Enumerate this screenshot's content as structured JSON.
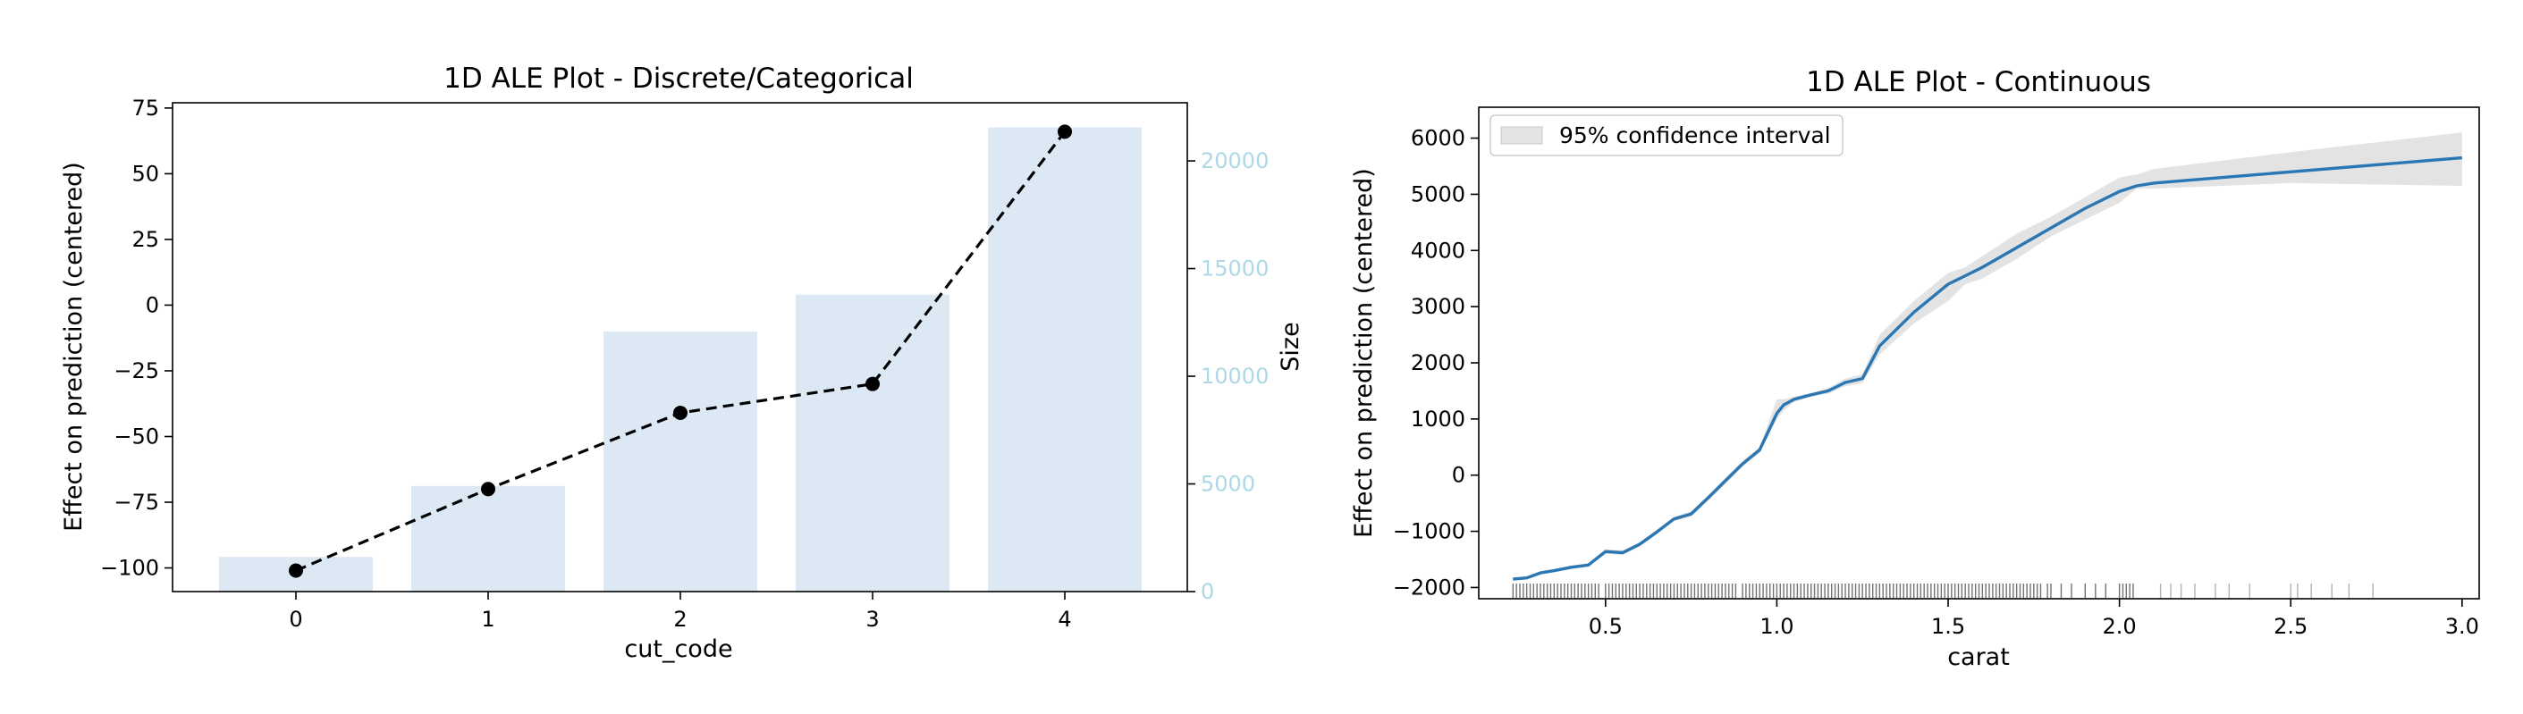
{
  "chart_data": [
    {
      "type": "bar",
      "title": "1D ALE Plot - Discrete/Categorical",
      "xlabel": "cut_code",
      "ylabel": "Effect on prediction (centered)",
      "y2label": "Size",
      "categories": [
        "0",
        "1",
        "2",
        "3",
        "4"
      ],
      "y_ticks": [
        75,
        50,
        25,
        0,
        -25,
        -50,
        -75,
        -100
      ],
      "y_tick_labels": [
        "75",
        "50",
        "25",
        "0",
        "−25",
        "−50",
        "−75",
        "−100"
      ],
      "y2_ticks": [
        0,
        5000,
        10000,
        15000,
        20000
      ],
      "y2_tick_labels": [
        "0",
        "5000",
        "10000",
        "15000",
        "20000"
      ],
      "ylim": [
        -109,
        77
      ],
      "y2lim": [
        0,
        22700
      ],
      "series": [
        {
          "kind": "bar",
          "axis": "right",
          "values": [
            1610,
            4906,
            12082,
            13791,
            21551
          ]
        },
        {
          "kind": "line",
          "axis": "left",
          "style": "dashed",
          "values": [
            -101,
            -70,
            -41,
            -30,
            66
          ]
        }
      ],
      "colors": {
        "bars": "#dce8f4",
        "line": "#000000",
        "right_axis": "#add8e6"
      },
      "grid": false
    },
    {
      "type": "line",
      "title": "1D ALE Plot - Continuous",
      "xlabel": "carat",
      "ylabel": "Effect on prediction (centered)",
      "xlim": [
        0.13,
        3.05
      ],
      "ylim": [
        -2200,
        6550
      ],
      "x_ticks": [
        0.5,
        1.0,
        1.5,
        2.0,
        2.5,
        3.0
      ],
      "x_tick_labels": [
        "0.5",
        "1.0",
        "1.5",
        "2.0",
        "2.5",
        "3.0"
      ],
      "y_ticks": [
        6000,
        5000,
        4000,
        3000,
        2000,
        1000,
        0,
        -1000,
        -2000
      ],
      "y_tick_labels": [
        "6000",
        "5000",
        "4000",
        "3000",
        "2000",
        "1000",
        "0",
        "−1000",
        "−2000"
      ],
      "legend": {
        "label": "95% confidence interval",
        "position": "top-left"
      },
      "series": [
        {
          "name": "",
          "x": [
            0.23,
            0.27,
            0.31,
            0.35,
            0.4,
            0.45,
            0.5,
            0.55,
            0.6,
            0.65,
            0.7,
            0.75,
            0.8,
            0.85,
            0.9,
            0.95,
            1.0,
            1.02,
            1.05,
            1.1,
            1.15,
            1.2,
            1.25,
            1.3,
            1.4,
            1.5,
            1.55,
            1.6,
            1.7,
            1.8,
            1.9,
            2.0,
            2.05,
            2.1,
            2.5,
            3.0
          ],
          "y": [
            -1850,
            -1830,
            -1740,
            -1700,
            -1640,
            -1600,
            -1360,
            -1380,
            -1230,
            -1010,
            -780,
            -690,
            -400,
            -100,
            200,
            450,
            1100,
            1250,
            1350,
            1430,
            1500,
            1650,
            1720,
            2300,
            2900,
            3400,
            3550,
            3700,
            4050,
            4400,
            4750,
            5050,
            5150,
            5200,
            5400,
            5650
          ]
        }
      ],
      "ci_band": {
        "lower": [
          -1870,
          -1850,
          -1770,
          -1730,
          -1670,
          -1630,
          -1400,
          -1420,
          -1270,
          -1050,
          -820,
          -740,
          -450,
          -150,
          150,
          400,
          1000,
          1150,
          1300,
          1400,
          1450,
          1580,
          1640,
          2150,
          2700,
          3100,
          3400,
          3500,
          3850,
          4250,
          4550,
          4850,
          5100,
          5100,
          5200,
          5150
        ],
        "upper": [
          -1830,
          -1810,
          -1710,
          -1670,
          -1610,
          -1570,
          -1320,
          -1340,
          -1190,
          -970,
          -740,
          -640,
          -350,
          -50,
          250,
          500,
          1350,
          1350,
          1400,
          1460,
          1550,
          1720,
          1800,
          2500,
          3100,
          3600,
          3700,
          3900,
          4300,
          4600,
          4950,
          5300,
          5350,
          5450,
          5750,
          6100
        ]
      },
      "rug_x": [
        0.23,
        0.24,
        0.25,
        0.26,
        0.27,
        0.28,
        0.29,
        0.3,
        0.31,
        0.32,
        0.33,
        0.34,
        0.35,
        0.36,
        0.37,
        0.38,
        0.39,
        0.4,
        0.41,
        0.42,
        0.43,
        0.44,
        0.45,
        0.46,
        0.47,
        0.48,
        0.5,
        0.51,
        0.52,
        0.53,
        0.54,
        0.55,
        0.56,
        0.57,
        0.58,
        0.59,
        0.6,
        0.61,
        0.62,
        0.63,
        0.64,
        0.65,
        0.66,
        0.67,
        0.68,
        0.69,
        0.7,
        0.71,
        0.72,
        0.73,
        0.74,
        0.75,
        0.76,
        0.77,
        0.78,
        0.79,
        0.8,
        0.81,
        0.82,
        0.83,
        0.84,
        0.85,
        0.86,
        0.87,
        0.88,
        0.9,
        0.91,
        0.92,
        0.93,
        0.94,
        0.95,
        0.96,
        0.97,
        0.98,
        0.99,
        1.0,
        1.01,
        1.02,
        1.03,
        1.04,
        1.05,
        1.06,
        1.07,
        1.08,
        1.09,
        1.1,
        1.11,
        1.12,
        1.13,
        1.14,
        1.15,
        1.16,
        1.17,
        1.18,
        1.19,
        1.2,
        1.21,
        1.22,
        1.23,
        1.24,
        1.25,
        1.26,
        1.27,
        1.28,
        1.29,
        1.3,
        1.31,
        1.32,
        1.33,
        1.34,
        1.35,
        1.36,
        1.37,
        1.38,
        1.39,
        1.4,
        1.41,
        1.42,
        1.43,
        1.44,
        1.45,
        1.46,
        1.47,
        1.48,
        1.49,
        1.5,
        1.51,
        1.52,
        1.53,
        1.54,
        1.55,
        1.56,
        1.57,
        1.58,
        1.59,
        1.6,
        1.61,
        1.62,
        1.63,
        1.64,
        1.65,
        1.66,
        1.67,
        1.68,
        1.69,
        1.7,
        1.71,
        1.72,
        1.73,
        1.74,
        1.75,
        1.76,
        1.77,
        1.79,
        1.8,
        1.83,
        1.86,
        1.9,
        1.93,
        1.96,
        2.0,
        2.01,
        2.02,
        2.03,
        2.04,
        2.12,
        2.15,
        2.18,
        2.22,
        2.28,
        2.32,
        2.38,
        2.5,
        2.52,
        2.56,
        2.62,
        2.67,
        2.74
      ]
    }
  ]
}
